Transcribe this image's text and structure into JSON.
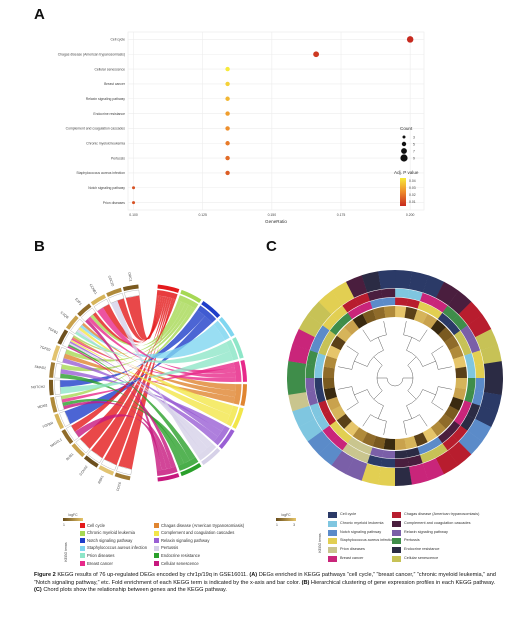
{
  "panels": {
    "a": "A",
    "b": "B",
    "c": "C"
  },
  "colors": {
    "gradient_low": "#c72a1f",
    "gradient_mid": "#ee8a2b",
    "gradient_high": "#f7ea3b",
    "gold_scale_low": "#6a4e1c",
    "gold_scale_high": "#e6c56a"
  },
  "chart_data": [
    {
      "type": "scatter",
      "title": "",
      "xlabel": "GeneRatio",
      "ylabel": "",
      "xlim": [
        0.098,
        0.205
      ],
      "x_ticks": [
        "0.100",
        "0.125",
        "0.150",
        "0.175",
        "0.200"
      ],
      "grid": true,
      "categories": [
        "Cell cycle",
        "Chagas disease (American trypanosomiasis)",
        "Cellular senescence",
        "Breast cancer",
        "Relaxin signaling pathway",
        "Endocrine resistance",
        "Complement and coagulation cascades",
        "Chronic myeloid leukemia",
        "Pertussis",
        "Staphylococcus aureus infection",
        "Notch signaling pathway",
        "Prion diseases"
      ],
      "points": [
        {
          "term": "Cell cycle",
          "gene_ratio": 0.2,
          "count": 8,
          "p_adjust": 0.002
        },
        {
          "term": "Chagas disease (American trypanosomiasis)",
          "gene_ratio": 0.166,
          "count": 7,
          "p_adjust": 0.005
        },
        {
          "term": "Cellular senescence",
          "gene_ratio": 0.134,
          "count": 5,
          "p_adjust": 0.04
        },
        {
          "term": "Breast cancer",
          "gene_ratio": 0.134,
          "count": 5,
          "p_adjust": 0.035
        },
        {
          "term": "Relaxin signaling pathway",
          "gene_ratio": 0.134,
          "count": 5,
          "p_adjust": 0.03
        },
        {
          "term": "Endocrine resistance",
          "gene_ratio": 0.134,
          "count": 5,
          "p_adjust": 0.025
        },
        {
          "term": "Complement and coagulation cascades",
          "gene_ratio": 0.134,
          "count": 5,
          "p_adjust": 0.022
        },
        {
          "term": "Chronic myeloid leukemia",
          "gene_ratio": 0.134,
          "count": 5,
          "p_adjust": 0.018
        },
        {
          "term": "Pertussis",
          "gene_ratio": 0.134,
          "count": 5,
          "p_adjust": 0.015
        },
        {
          "term": "Staphylococcus aureus infection",
          "gene_ratio": 0.134,
          "count": 5,
          "p_adjust": 0.012
        },
        {
          "term": "Notch signaling pathway",
          "gene_ratio": 0.1,
          "count": 3,
          "p_adjust": 0.01
        },
        {
          "term": "Prion diseases",
          "gene_ratio": 0.1,
          "count": 3,
          "p_adjust": 0.01
        }
      ],
      "legend": {
        "count_title": "Count",
        "count_values": [
          "3",
          "5",
          "7",
          "9"
        ],
        "color_title": "Adj. P value",
        "color_values": [
          "0.04",
          "0.03",
          "0.02",
          "0.01"
        ],
        "placement": "right"
      }
    }
  ],
  "panel_b": {
    "genes": [
      "ORC1",
      "CDC20",
      "CCNB1",
      "E2F1",
      "C1QB",
      "TGFB1",
      "TGFB2",
      "SMAD2",
      "NOTCH2",
      "MDM2",
      "TGFBR",
      "MAD2L1",
      "BUB1",
      "CCNA2",
      "RBX1",
      "CDC6"
    ],
    "scale_title": "logFC",
    "scale_min": "1",
    "scale_max": "3",
    "legend_title": "KEGG terms",
    "terms": [
      {
        "label": "Cell cycle",
        "color": "#e41a1c"
      },
      {
        "label": "Chronic myeloid leukemia",
        "color": "#a6d854"
      },
      {
        "label": "Notch signaling pathway",
        "color": "#1f3ec9"
      },
      {
        "label": "Staphylococcus aureus infection",
        "color": "#7fd6f0"
      },
      {
        "label": "Prion diseases",
        "color": "#8ee6c8"
      },
      {
        "label": "Breast cancer",
        "color": "#e7298a"
      },
      {
        "label": "Chagas disease (American trypanosomiasis)",
        "color": "#e08530"
      },
      {
        "label": "Complement and coagulation cascades",
        "color": "#f2e64a"
      },
      {
        "label": "Relaxin signaling pathway",
        "color": "#9a5fd4"
      },
      {
        "label": "Pertussis",
        "color": "#d6d1e8"
      },
      {
        "label": "Endocrine resistance",
        "color": "#2aa02b"
      },
      {
        "label": "Cellular senescence",
        "color": "#c7187e"
      }
    ]
  },
  "panel_c": {
    "scale_title": "logFC",
    "scale_min": "1",
    "scale_max": "3",
    "legend_title": "KEGG terms",
    "terms": [
      {
        "label": "Cell cycle",
        "color": "#2b3a67"
      },
      {
        "label": "Chronic myeloid leukemia",
        "color": "#7fc6e0"
      },
      {
        "label": "Notch signaling pathway",
        "color": "#5b8bc9"
      },
      {
        "label": "Staphylococcus aureus infection",
        "color": "#e2cf52"
      },
      {
        "label": "Prion diseases",
        "color": "#c9c58e"
      },
      {
        "label": "Breast cancer",
        "color": "#c9257a"
      },
      {
        "label": "Chagas disease (American trypanosomiasis)",
        "color": "#b81d2e"
      },
      {
        "label": "Complement and coagulation cascades",
        "color": "#4a1e3e"
      },
      {
        "label": "Relaxin signaling pathway",
        "color": "#7a5fa8"
      },
      {
        "label": "Pertussis",
        "color": "#3f8d4a"
      },
      {
        "label": "Endocrine resistance",
        "color": "#2b2b44"
      },
      {
        "label": "Cellular senescence",
        "color": "#c7c256"
      }
    ]
  },
  "caption": {
    "label": "Figure 2",
    "lead": " KEGG results of 76 up-regulated DEGs encoded by chr1p/19q in GSE16011. ",
    "a_label": "(A)",
    "a_text": " DEGs enriched in KEGG pathways “cell cycle,” “breast cancer,” “chronic myeloid leukemia,” and “Notch signaling pathway,” etc. Fold enrichment of each KEGG term is indicated by the x-axis and bar color. ",
    "b_label": "(B)",
    "b_text": " Hierarchical clustering of gene expression profiles in each KEGG pathway. ",
    "c_label": "(C)",
    "c_text": " Chord plots show the relationship between genes and the KEGG pathway."
  }
}
